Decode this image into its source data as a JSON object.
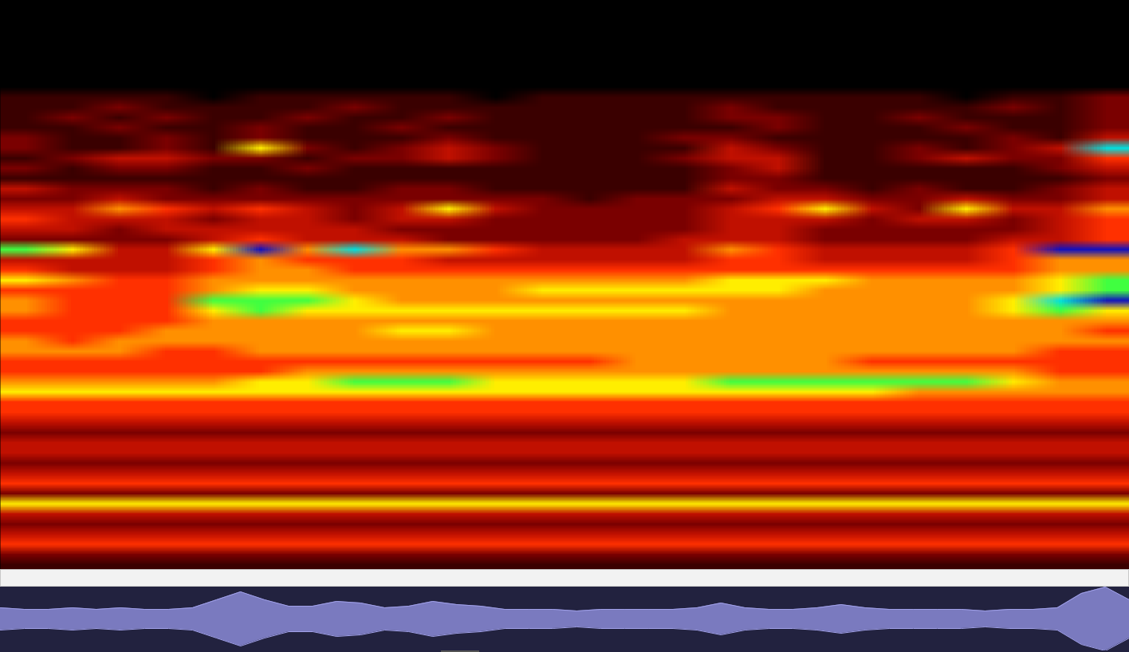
{
  "chart_data": {
    "type": "spectrogram",
    "tick_labels": false,
    "grid": false,
    "zlim": [
      0,
      9
    ],
    "cells": [
      [
        0,
        0,
        0,
        0,
        0,
        0,
        0,
        0,
        0,
        0,
        0,
        0,
        0,
        0,
        0,
        0,
        0,
        0,
        0,
        0,
        0,
        0,
        0,
        0
      ],
      [
        0,
        0,
        0,
        0,
        0,
        0,
        0,
        0,
        0,
        0,
        0,
        0,
        0,
        0,
        0,
        0,
        0,
        0,
        0,
        0,
        0,
        0,
        0,
        0
      ],
      [
        0,
        0,
        0,
        0,
        0,
        0,
        0,
        0,
        0,
        0,
        0,
        0,
        0,
        0,
        0,
        0,
        0,
        0,
        0,
        0,
        0,
        0,
        0,
        0
      ],
      [
        0,
        0,
        0,
        0,
        0,
        0,
        0,
        0,
        0,
        0,
        0,
        0,
        0,
        0,
        0,
        0,
        0,
        0,
        0,
        0,
        0,
        0,
        0,
        0
      ],
      [
        0,
        0,
        0,
        0,
        0,
        0,
        0,
        0,
        0,
        0,
        0,
        0,
        0,
        0,
        0,
        0,
        0,
        0,
        0,
        0,
        0,
        0,
        0,
        0
      ],
      [
        0,
        0,
        0,
        0,
        0,
        0,
        0,
        0,
        0,
        0,
        0,
        0,
        0,
        0,
        0,
        0,
        0,
        0,
        0,
        0,
        0,
        0,
        0,
        0
      ],
      [
        0,
        0,
        0,
        0,
        0,
        0,
        0,
        0,
        0,
        0,
        0,
        0,
        0,
        0,
        0,
        0,
        0,
        0,
        0,
        0,
        0,
        0,
        0,
        0
      ],
      [
        0,
        0,
        0,
        0,
        0,
        0,
        0,
        0,
        0,
        0,
        0,
        0,
        0,
        0,
        0,
        0,
        0,
        0,
        0,
        0,
        0,
        0,
        0,
        0
      ],
      [
        0,
        0,
        0,
        0,
        0,
        0,
        0,
        0,
        0,
        0,
        0,
        0,
        0,
        0,
        0,
        0,
        0,
        0,
        0,
        0,
        0,
        0,
        0,
        0
      ],
      [
        1,
        1,
        1,
        1,
        0,
        1,
        1,
        1,
        1,
        1,
        0,
        1,
        1,
        1,
        1,
        1,
        1,
        1,
        1,
        1,
        0,
        1,
        1,
        2
      ],
      [
        1,
        1,
        2,
        1,
        1,
        1,
        1,
        2,
        1,
        1,
        1,
        1,
        1,
        1,
        1,
        2,
        1,
        1,
        1,
        1,
        1,
        2,
        1,
        2
      ],
      [
        1,
        2,
        1,
        2,
        1,
        1,
        2,
        1,
        1,
        2,
        1,
        1,
        1,
        1,
        1,
        2,
        2,
        1,
        1,
        2,
        1,
        1,
        1,
        2
      ],
      [
        1,
        1,
        2,
        1,
        1,
        2,
        1,
        1,
        2,
        1,
        1,
        1,
        1,
        1,
        1,
        1,
        2,
        1,
        1,
        1,
        2,
        1,
        1,
        2
      ],
      [
        2,
        1,
        1,
        2,
        1,
        2,
        1,
        1,
        1,
        2,
        1,
        1,
        1,
        1,
        2,
        2,
        1,
        1,
        1,
        1,
        1,
        2,
        1,
        3
      ],
      [
        2,
        1,
        1,
        2,
        1,
        6,
        2,
        1,
        2,
        3,
        2,
        1,
        1,
        1,
        1,
        3,
        2,
        1,
        1,
        2,
        1,
        2,
        3,
        8
      ],
      [
        1,
        2,
        3,
        3,
        2,
        2,
        1,
        2,
        2,
        3,
        2,
        1,
        1,
        1,
        2,
        3,
        3,
        1,
        1,
        2,
        3,
        2,
        2,
        4
      ],
      [
        2,
        1,
        2,
        2,
        1,
        1,
        2,
        1,
        1,
        1,
        1,
        1,
        1,
        1,
        1,
        2,
        3,
        1,
        1,
        1,
        1,
        1,
        2,
        3
      ],
      [
        1,
        1,
        1,
        1,
        1,
        1,
        1,
        1,
        1,
        1,
        1,
        1,
        1,
        1,
        1,
        2,
        2,
        1,
        1,
        1,
        1,
        1,
        1,
        2
      ],
      [
        3,
        2,
        2,
        2,
        1,
        2,
        1,
        1,
        2,
        2,
        1,
        1,
        1,
        1,
        1,
        3,
        2,
        2,
        1,
        2,
        1,
        1,
        2,
        3
      ],
      [
        2,
        2,
        3,
        2,
        2,
        2,
        2,
        2,
        2,
        2,
        2,
        2,
        1,
        2,
        2,
        2,
        3,
        3,
        2,
        2,
        3,
        2,
        2,
        3
      ],
      [
        3,
        3,
        5,
        4,
        3,
        4,
        3,
        2,
        3,
        6,
        3,
        2,
        2,
        2,
        2,
        3,
        4,
        6,
        3,
        2,
        6,
        3,
        3,
        5
      ],
      [
        4,
        3,
        3,
        3,
        2,
        3,
        3,
        2,
        3,
        3,
        2,
        2,
        2,
        2,
        2,
        3,
        3,
        3,
        2,
        3,
        3,
        2,
        3,
        4
      ],
      [
        3,
        3,
        2,
        3,
        3,
        3,
        3,
        3,
        2,
        2,
        2,
        2,
        2,
        2,
        2,
        3,
        3,
        2,
        2,
        2,
        2,
        2,
        3,
        4
      ],
      [
        2,
        2,
        2,
        2,
        3,
        4,
        3,
        3,
        3,
        2,
        2,
        2,
        2,
        2,
        3,
        3,
        3,
        2,
        2,
        2,
        2,
        3,
        3,
        4
      ],
      [
        7,
        6,
        3,
        3,
        6,
        9,
        5,
        8,
        5,
        5,
        4,
        3,
        3,
        3,
        3,
        5,
        4,
        3,
        3,
        3,
        3,
        4,
        9,
        9
      ],
      [
        3,
        3,
        3,
        3,
        4,
        5,
        4,
        4,
        4,
        3,
        3,
        3,
        3,
        3,
        3,
        4,
        4,
        3,
        3,
        3,
        3,
        4,
        5,
        5
      ],
      [
        4,
        3,
        3,
        3,
        4,
        5,
        5,
        4,
        4,
        4,
        4,
        4,
        4,
        4,
        4,
        4,
        4,
        4,
        4,
        4,
        4,
        4,
        5,
        5
      ],
      [
        6,
        5,
        4,
        4,
        5,
        5,
        5,
        5,
        5,
        5,
        5,
        5,
        5,
        5,
        5,
        6,
        6,
        6,
        5,
        5,
        5,
        5,
        6,
        7
      ],
      [
        4,
        4,
        4,
        4,
        5,
        6,
        6,
        5,
        5,
        5,
        5,
        6,
        6,
        6,
        6,
        6,
        6,
        5,
        5,
        5,
        5,
        5,
        6,
        7
      ],
      [
        5,
        4,
        4,
        4,
        7,
        7,
        7,
        6,
        5,
        5,
        5,
        5,
        5,
        5,
        5,
        5,
        5,
        5,
        5,
        5,
        5,
        6,
        8,
        9
      ],
      [
        5,
        4,
        4,
        4,
        6,
        7,
        6,
        6,
        6,
        6,
        6,
        6,
        6,
        6,
        6,
        5,
        5,
        5,
        5,
        5,
        5,
        6,
        7,
        6
      ],
      [
        4,
        4,
        4,
        4,
        5,
        5,
        5,
        5,
        5,
        5,
        5,
        5,
        5,
        5,
        5,
        5,
        5,
        5,
        5,
        5,
        5,
        5,
        5,
        5
      ],
      [
        4,
        4,
        4,
        5,
        5,
        5,
        5,
        5,
        6,
        6,
        5,
        5,
        5,
        5,
        5,
        5,
        5,
        5,
        5,
        5,
        5,
        5,
        5,
        4
      ],
      [
        5,
        4,
        5,
        5,
        5,
        5,
        5,
        5,
        5,
        5,
        5,
        5,
        5,
        5,
        5,
        5,
        5,
        5,
        5,
        5,
        5,
        5,
        5,
        5
      ],
      [
        5,
        5,
        5,
        4,
        4,
        5,
        5,
        5,
        5,
        5,
        5,
        5,
        5,
        5,
        5,
        5,
        5,
        5,
        5,
        5,
        5,
        5,
        4,
        4
      ],
      [
        4,
        4,
        4,
        4,
        4,
        4,
        4,
        4,
        4,
        4,
        4,
        4,
        4,
        5,
        5,
        5,
        5,
        5,
        4,
        4,
        4,
        4,
        4,
        4
      ],
      [
        4,
        4,
        4,
        4,
        4,
        4,
        5,
        5,
        5,
        5,
        5,
        5,
        5,
        5,
        5,
        5,
        5,
        5,
        5,
        5,
        5,
        5,
        4,
        4
      ],
      [
        5,
        5,
        5,
        5,
        5,
        6,
        6,
        7,
        7,
        7,
        6,
        6,
        6,
        6,
        6,
        7,
        7,
        7,
        7,
        7,
        7,
        6,
        5,
        5
      ],
      [
        6,
        6,
        6,
        6,
        6,
        6,
        6,
        6,
        6,
        6,
        6,
        6,
        6,
        6,
        6,
        6,
        6,
        6,
        6,
        5,
        5,
        5,
        5,
        5
      ],
      [
        4,
        4,
        4,
        4,
        4,
        4,
        4,
        4,
        4,
        4,
        4,
        4,
        4,
        4,
        4,
        4,
        4,
        4,
        4,
        4,
        4,
        4,
        4,
        4
      ],
      [
        4,
        4,
        4,
        4,
        4,
        4,
        4,
        4,
        4,
        4,
        4,
        4,
        4,
        4,
        4,
        4,
        4,
        4,
        4,
        4,
        4,
        4,
        4,
        4
      ],
      [
        3,
        3,
        3,
        3,
        3,
        3,
        3,
        3,
        3,
        3,
        3,
        3,
        3,
        3,
        3,
        3,
        3,
        3,
        3,
        3,
        3,
        3,
        3,
        3
      ],
      [
        2,
        2,
        2,
        2,
        2,
        2,
        2,
        2,
        2,
        2,
        2,
        2,
        2,
        2,
        2,
        2,
        2,
        2,
        2,
        2,
        2,
        2,
        2,
        2
      ],
      [
        3,
        3,
        3,
        3,
        3,
        3,
        3,
        3,
        3,
        3,
        3,
        3,
        3,
        3,
        3,
        3,
        3,
        3,
        3,
        3,
        3,
        3,
        3,
        3
      ],
      [
        3,
        3,
        3,
        3,
        3,
        3,
        3,
        3,
        3,
        3,
        3,
        3,
        3,
        3,
        3,
        3,
        3,
        3,
        3,
        3,
        3,
        3,
        3,
        3
      ],
      [
        2,
        2,
        2,
        2,
        2,
        2,
        2,
        2,
        2,
        2,
        2,
        2,
        2,
        2,
        2,
        2,
        2,
        2,
        2,
        2,
        2,
        2,
        2,
        2
      ],
      [
        3,
        3,
        3,
        3,
        3,
        3,
        3,
        3,
        3,
        3,
        3,
        3,
        3,
        3,
        3,
        3,
        3,
        3,
        3,
        3,
        3,
        3,
        3,
        3
      ],
      [
        4,
        4,
        4,
        4,
        4,
        4,
        4,
        4,
        4,
        4,
        4,
        4,
        4,
        4,
        4,
        4,
        4,
        4,
        4,
        4,
        4,
        4,
        4,
        4
      ],
      [
        2,
        2,
        2,
        2,
        2,
        2,
        2,
        2,
        2,
        2,
        2,
        2,
        2,
        2,
        2,
        2,
        2,
        2,
        2,
        2,
        2,
        2,
        2,
        2
      ],
      [
        6,
        6,
        6,
        6,
        6,
        6,
        6,
        6,
        6,
        6,
        6,
        6,
        6,
        6,
        6,
        6,
        6,
        6,
        6,
        6,
        6,
        6,
        6,
        6
      ],
      [
        3,
        3,
        3,
        3,
        3,
        3,
        3,
        3,
        3,
        3,
        3,
        3,
        3,
        3,
        3,
        3,
        3,
        3,
        3,
        3,
        3,
        3,
        3,
        3
      ],
      [
        2,
        2,
        2,
        2,
        2,
        2,
        2,
        2,
        2,
        2,
        2,
        2,
        2,
        2,
        2,
        2,
        2,
        2,
        2,
        2,
        2,
        2,
        2,
        2
      ],
      [
        3,
        3,
        3,
        3,
        3,
        3,
        3,
        3,
        3,
        3,
        3,
        3,
        3,
        3,
        3,
        3,
        3,
        3,
        3,
        3,
        3,
        3,
        3,
        3
      ],
      [
        4,
        4,
        4,
        4,
        4,
        4,
        4,
        4,
        4,
        4,
        4,
        4,
        4,
        4,
        4,
        4,
        4,
        4,
        4,
        4,
        4,
        4,
        4,
        4
      ],
      [
        2,
        2,
        2,
        2,
        2,
        2,
        2,
        2,
        2,
        2,
        2,
        2,
        2,
        2,
        2,
        2,
        2,
        2,
        2,
        2,
        2,
        2,
        2,
        2
      ],
      [
        1,
        1,
        1,
        1,
        1,
        1,
        1,
        1,
        1,
        1,
        1,
        1,
        1,
        1,
        1,
        1,
        1,
        1,
        1,
        1,
        1,
        1,
        1,
        1
      ]
    ],
    "waveform": {
      "ylim": [
        -1,
        1
      ],
      "values": [
        0.35,
        0.3,
        0.3,
        0.35,
        0.3,
        0.35,
        0.3,
        0.3,
        0.35,
        0.6,
        0.85,
        0.6,
        0.4,
        0.4,
        0.55,
        0.5,
        0.35,
        0.4,
        0.55,
        0.45,
        0.4,
        0.3,
        0.3,
        0.3,
        0.25,
        0.3,
        0.3,
        0.3,
        0.3,
        0.35,
        0.5,
        0.35,
        0.3,
        0.3,
        0.35,
        0.45,
        0.35,
        0.3,
        0.3,
        0.3,
        0.3,
        0.25,
        0.3,
        0.3,
        0.35,
        0.8,
        1.0,
        0.6
      ]
    }
  }
}
